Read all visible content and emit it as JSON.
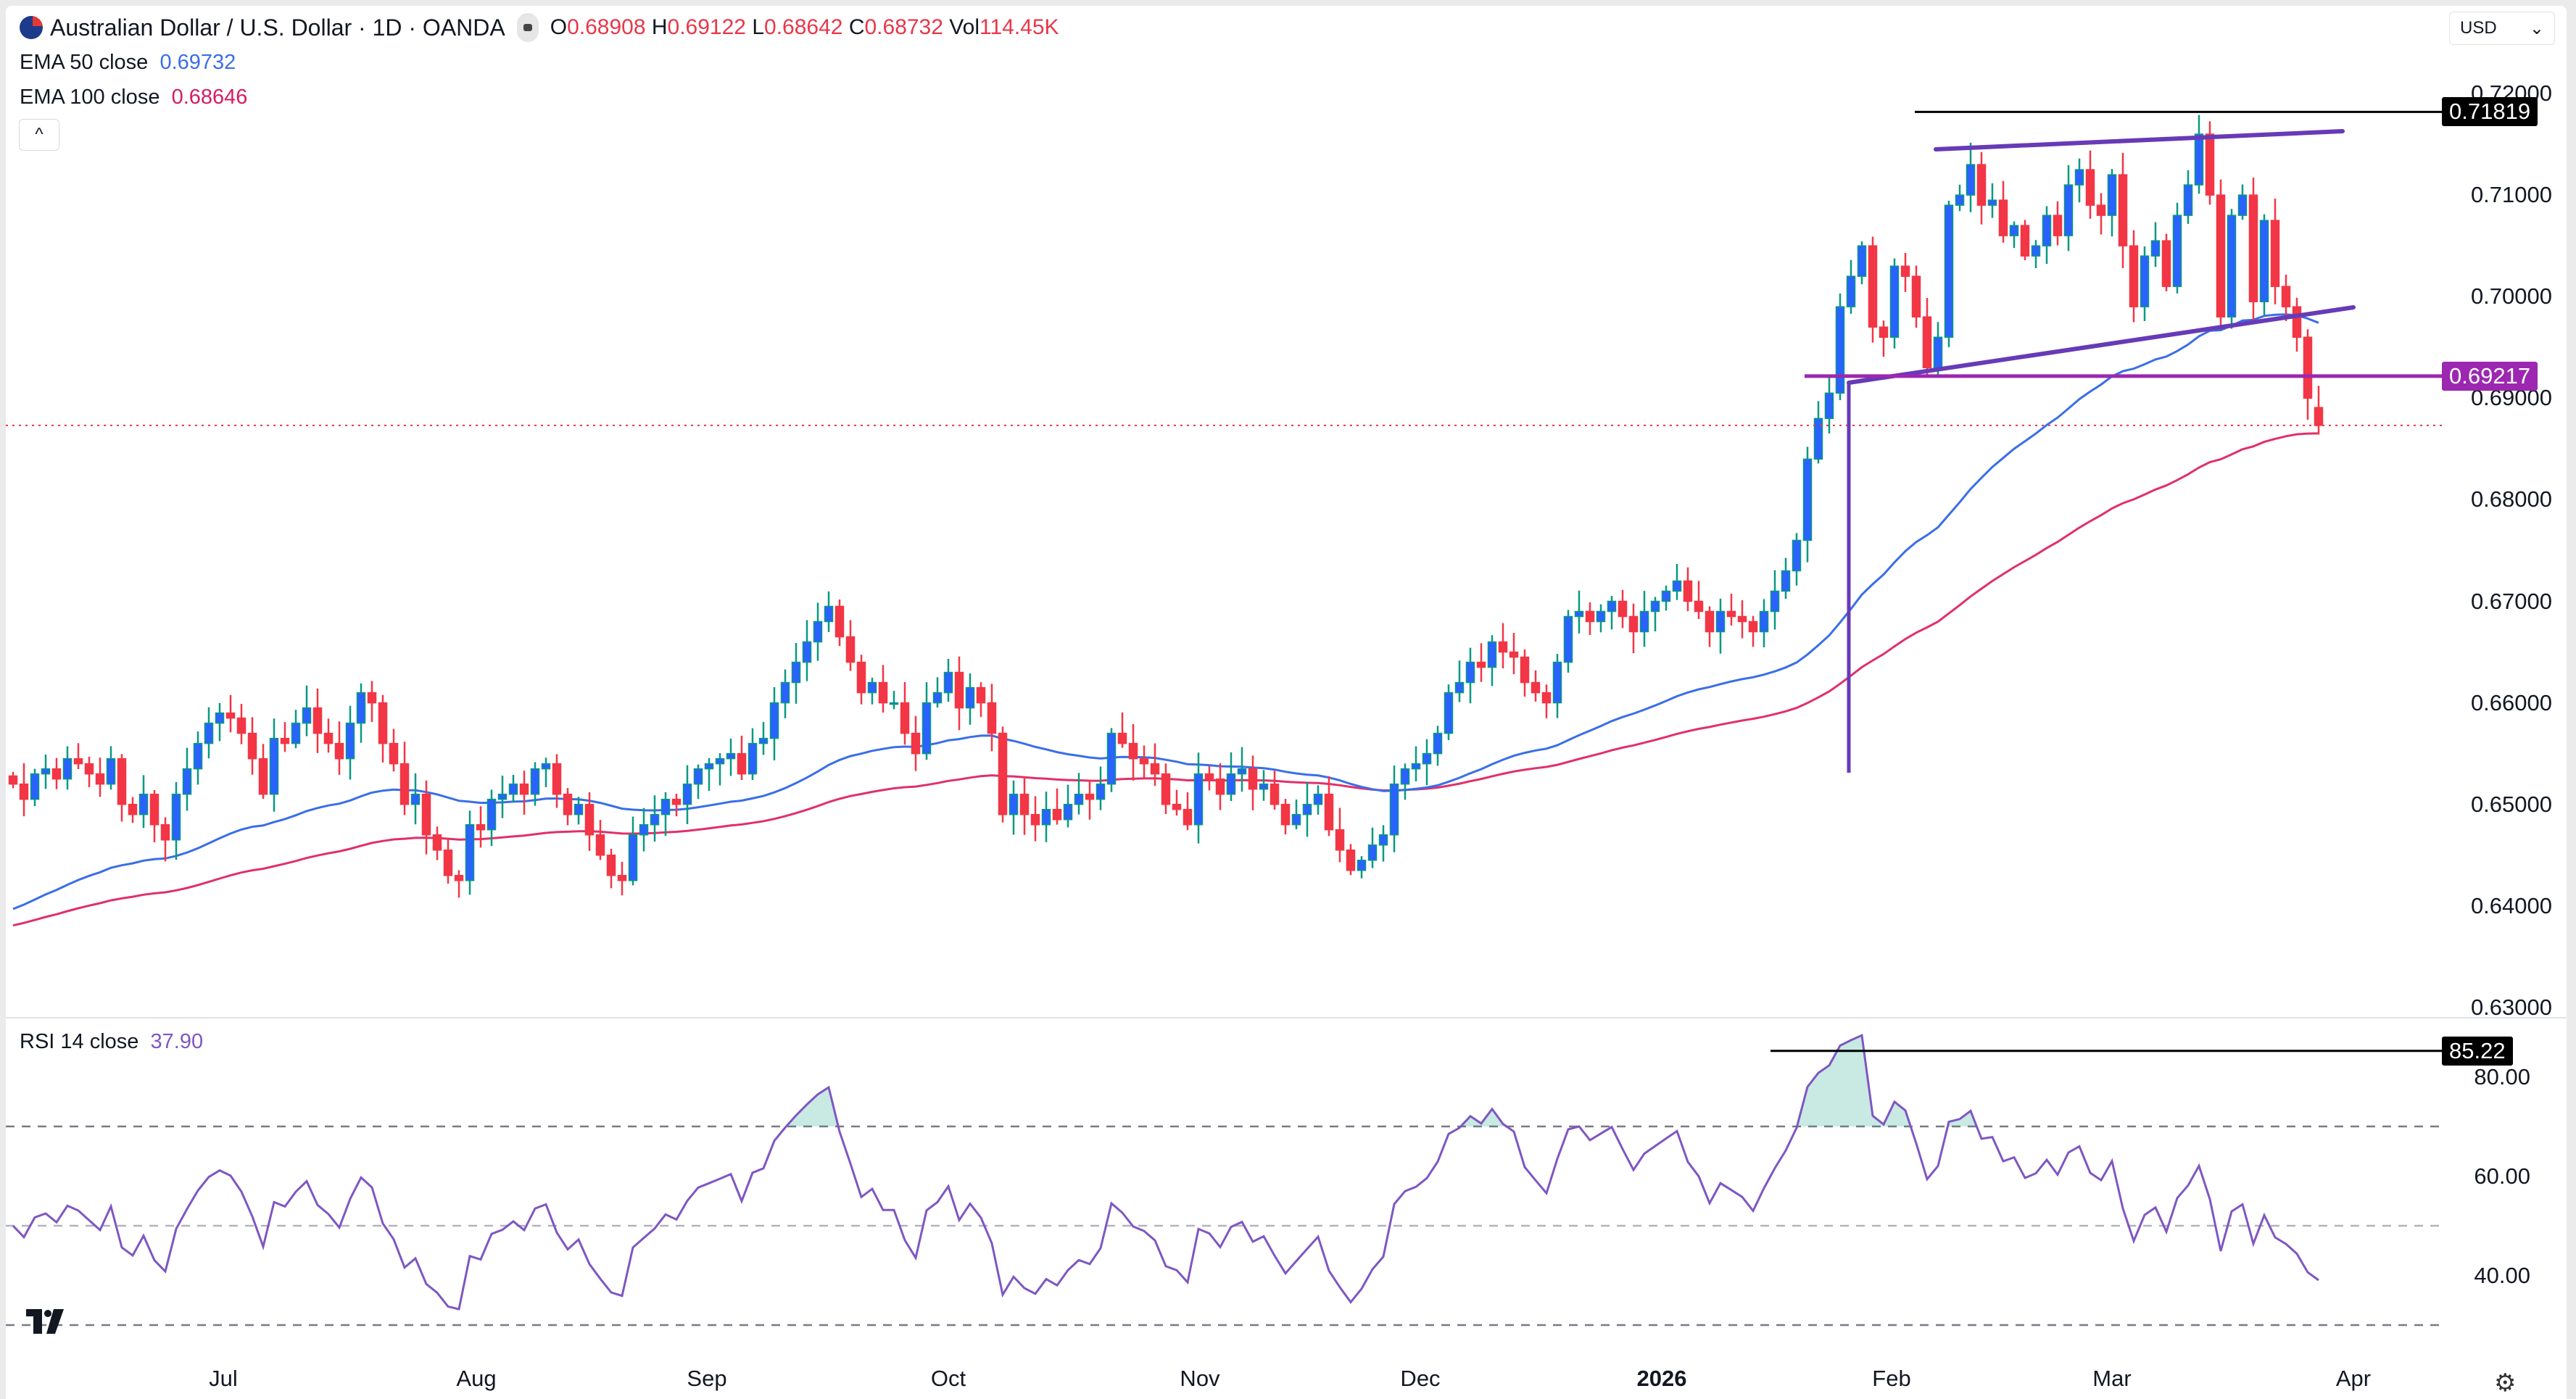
{
  "header": {
    "symbol_title": "Australian Dollar / U.S. Dollar · 1D · OANDA",
    "open_label": "O",
    "open": "0.68908",
    "high_label": "H",
    "high": "0.69122",
    "low_label": "L",
    "low": "0.68642",
    "close_label": "C",
    "close": "0.68732",
    "vol_label": "Vol",
    "vol": "114.45K"
  },
  "indicators": {
    "ema50": {
      "label": "EMA 50 close",
      "value": "0.69732",
      "color": "#3a6ee8"
    },
    "ema100": {
      "label": "EMA 100 close",
      "value": "0.68646",
      "color": "#e0306a"
    },
    "rsi": {
      "label": "RSI 14 close",
      "value": "37.90",
      "color": "#7e57c2"
    }
  },
  "controls": {
    "collapse_icon": "chevron-up-icon",
    "collapse_glyph": "^",
    "currency": "USD",
    "settings_icon": "gear-icon"
  },
  "price_axis": {
    "ticks": [
      "0.72000",
      "0.71000",
      "0.70000",
      "0.69000",
      "0.68000",
      "0.67000",
      "0.66000",
      "0.65000",
      "0.64000",
      "0.63000"
    ],
    "marker_high": {
      "value": "0.71819",
      "color": "#000000"
    },
    "marker_level": {
      "value": "0.69217",
      "color": "#9c27b0"
    }
  },
  "rsi_axis": {
    "ticks": [
      "80.00",
      "60.00",
      "40.00"
    ],
    "bands": [
      70,
      50,
      30
    ],
    "marker_peak": {
      "value": "85.22",
      "color": "#000000"
    }
  },
  "time_axis": {
    "labels": [
      {
        "text": "Jul",
        "bold": false
      },
      {
        "text": "Aug",
        "bold": false
      },
      {
        "text": "Sep",
        "bold": false
      },
      {
        "text": "Oct",
        "bold": false
      },
      {
        "text": "Nov",
        "bold": false
      },
      {
        "text": "Dec",
        "bold": false
      },
      {
        "text": "2026",
        "bold": true
      },
      {
        "text": "Feb",
        "bold": false
      },
      {
        "text": "Mar",
        "bold": false
      },
      {
        "text": "Apr",
        "bold": false
      }
    ]
  },
  "chart_data": {
    "type": "candlestick",
    "title": "Australian Dollar / U.S. Dollar · 1D · OANDA",
    "ylim": [
      0.63,
      0.72
    ],
    "up_color": "#2962ff",
    "down_color": "#f23645",
    "wick_color_up": "#089981",
    "closes": [
      0.652,
      0.6505,
      0.653,
      0.6535,
      0.6525,
      0.6545,
      0.654,
      0.653,
      0.652,
      0.6545,
      0.65,
      0.649,
      0.651,
      0.648,
      0.6465,
      0.651,
      0.6535,
      0.656,
      0.658,
      0.659,
      0.6585,
      0.657,
      0.6545,
      0.651,
      0.6565,
      0.656,
      0.658,
      0.6595,
      0.657,
      0.656,
      0.6545,
      0.658,
      0.661,
      0.66,
      0.656,
      0.654,
      0.65,
      0.651,
      0.647,
      0.6455,
      0.643,
      0.6425,
      0.648,
      0.6475,
      0.6505,
      0.651,
      0.652,
      0.651,
      0.6535,
      0.654,
      0.651,
      0.649,
      0.65,
      0.647,
      0.645,
      0.643,
      0.6425,
      0.647,
      0.648,
      0.649,
      0.6505,
      0.65,
      0.652,
      0.6535,
      0.654,
      0.6545,
      0.655,
      0.653,
      0.656,
      0.6565,
      0.66,
      0.662,
      0.664,
      0.666,
      0.668,
      0.6695,
      0.6665,
      0.664,
      0.661,
      0.662,
      0.66,
      0.66,
      0.657,
      0.655,
      0.66,
      0.661,
      0.663,
      0.6595,
      0.6615,
      0.66,
      0.657,
      0.649,
      0.651,
      0.649,
      0.648,
      0.6495,
      0.6485,
      0.65,
      0.651,
      0.6505,
      0.652,
      0.657,
      0.656,
      0.6545,
      0.654,
      0.653,
      0.65,
      0.6495,
      0.648,
      0.653,
      0.6525,
      0.651,
      0.653,
      0.6535,
      0.6515,
      0.652,
      0.65,
      0.648,
      0.649,
      0.65,
      0.651,
      0.6475,
      0.6455,
      0.6435,
      0.6445,
      0.646,
      0.647,
      0.652,
      0.6535,
      0.654,
      0.655,
      0.657,
      0.661,
      0.662,
      0.664,
      0.6635,
      0.666,
      0.665,
      0.6645,
      0.662,
      0.661,
      0.66,
      0.664,
      0.6685,
      0.669,
      0.668,
      0.669,
      0.67,
      0.6685,
      0.667,
      0.669,
      0.67,
      0.671,
      0.672,
      0.67,
      0.669,
      0.667,
      0.669,
      0.6685,
      0.668,
      0.667,
      0.669,
      0.671,
      0.673,
      0.676,
      0.684,
      0.688,
      0.6905,
      0.699,
      0.702,
      0.705,
      0.697,
      0.696,
      0.703,
      0.702,
      0.698,
      0.693,
      0.696,
      0.709,
      0.71,
      0.713,
      0.709,
      0.7095,
      0.706,
      0.707,
      0.704,
      0.705,
      0.708,
      0.706,
      0.711,
      0.7125,
      0.709,
      0.708,
      0.712,
      0.705,
      0.699,
      0.704,
      0.7055,
      0.701,
      0.708,
      0.711,
      0.716,
      0.71,
      0.698,
      0.708,
      0.71,
      0.6995,
      0.7075,
      0.701,
      0.699,
      0.696,
      0.69,
      0.6873
    ],
    "last_bar": {
      "open": 0.68908,
      "high": 0.69122,
      "low": 0.68642,
      "close": 0.68732
    },
    "current_price": 0.68732,
    "drawings": {
      "resistance_high": 0.71819,
      "support_level": 0.69217,
      "rsi_peak": 85.22
    }
  }
}
